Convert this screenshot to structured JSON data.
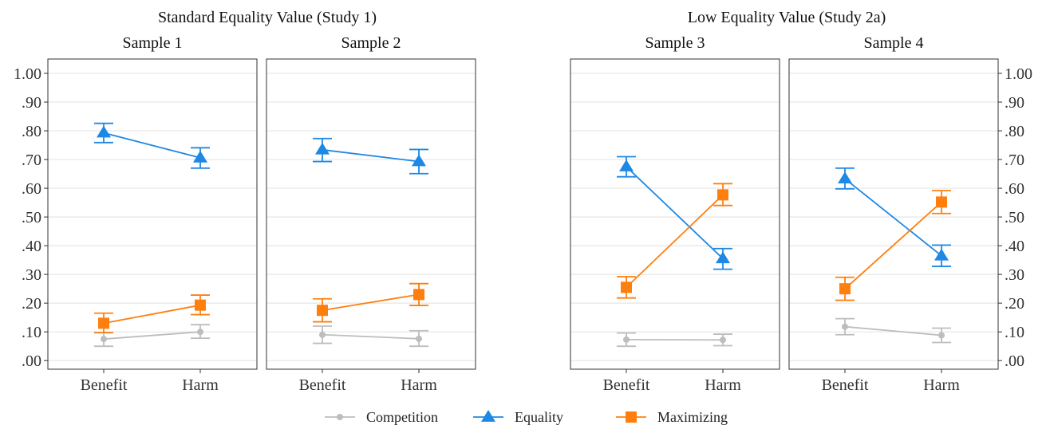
{
  "chart_data": {
    "type": "line",
    "group_titles": [
      "Standard Equality Value (Study 1)",
      "Low Equality Value (Study 2a)"
    ],
    "categories": [
      "Benefit",
      "Harm"
    ],
    "y_ticks": [
      ".00",
      ".10",
      ".20",
      ".30",
      ".40",
      ".50",
      ".60",
      ".70",
      ".80",
      ".90",
      "1.00"
    ],
    "ylim": [
      -0.03,
      1.05
    ],
    "grid": "horizontal",
    "legend_position": "bottom",
    "colors": {
      "Competition": "#bdbdbd",
      "Equality": "#1e88e5",
      "Maximizing": "#ff7f0e"
    },
    "legend": [
      {
        "name": "Competition",
        "marker": "circle"
      },
      {
        "name": "Equality",
        "marker": "triangle"
      },
      {
        "name": "Maximizing",
        "marker": "square"
      }
    ],
    "panels": [
      {
        "title": "Sample 1",
        "group": 0,
        "series": [
          {
            "name": "Competition",
            "values": [
              0.075,
              0.1
            ],
            "lower": [
              0.05,
              0.078
            ],
            "upper": [
              0.098,
              0.125
            ]
          },
          {
            "name": "Equality",
            "values": [
              0.793,
              0.706
            ],
            "lower": [
              0.759,
              0.67
            ],
            "upper": [
              0.826,
              0.741
            ]
          },
          {
            "name": "Maximizing",
            "values": [
              0.13,
              0.193
            ],
            "lower": [
              0.097,
              0.16
            ],
            "upper": [
              0.165,
              0.228
            ]
          }
        ]
      },
      {
        "title": "Sample 2",
        "group": 0,
        "series": [
          {
            "name": "Competition",
            "values": [
              0.09,
              0.076
            ],
            "lower": [
              0.06,
              0.05
            ],
            "upper": [
              0.12,
              0.104
            ]
          },
          {
            "name": "Equality",
            "values": [
              0.734,
              0.693
            ],
            "lower": [
              0.693,
              0.651
            ],
            "upper": [
              0.773,
              0.735
            ]
          },
          {
            "name": "Maximizing",
            "values": [
              0.175,
              0.23
            ],
            "lower": [
              0.135,
              0.192
            ],
            "upper": [
              0.215,
              0.268
            ]
          }
        ]
      },
      {
        "title": "Sample 3",
        "group": 1,
        "series": [
          {
            "name": "Competition",
            "values": [
              0.073,
              0.072
            ],
            "lower": [
              0.05,
              0.052
            ],
            "upper": [
              0.096,
              0.092
            ]
          },
          {
            "name": "Equality",
            "values": [
              0.675,
              0.355
            ],
            "lower": [
              0.64,
              0.318
            ],
            "upper": [
              0.71,
              0.39
            ]
          },
          {
            "name": "Maximizing",
            "values": [
              0.255,
              0.577
            ],
            "lower": [
              0.218,
              0.54
            ],
            "upper": [
              0.292,
              0.616
            ]
          }
        ]
      },
      {
        "title": "Sample 4",
        "group": 1,
        "series": [
          {
            "name": "Competition",
            "values": [
              0.118,
              0.088
            ],
            "lower": [
              0.09,
              0.063
            ],
            "upper": [
              0.146,
              0.113
            ]
          },
          {
            "name": "Equality",
            "values": [
              0.633,
              0.365
            ],
            "lower": [
              0.598,
              0.328
            ],
            "upper": [
              0.67,
              0.402
            ]
          },
          {
            "name": "Maximizing",
            "values": [
              0.25,
              0.552
            ],
            "lower": [
              0.21,
              0.512
            ],
            "upper": [
              0.29,
              0.592
            ]
          }
        ]
      }
    ]
  }
}
